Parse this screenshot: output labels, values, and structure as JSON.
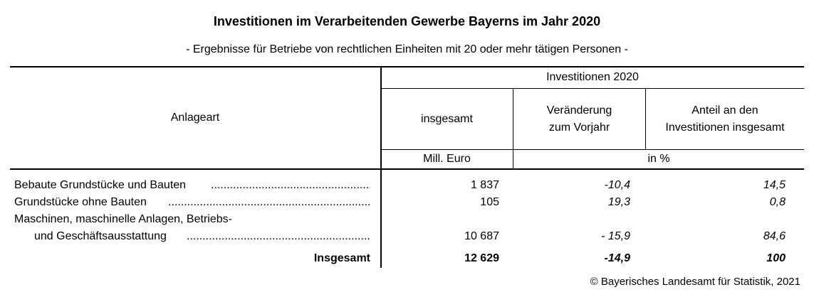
{
  "title": "Investitionen im Verarbeitenden Gewerbe Bayerns im Jahr 2020",
  "subtitle": "- Ergebnisse für Betriebe von rechtlichen Einheiten mit 20 oder mehr tätigen Personen -",
  "header": {
    "row_label": "Anlageart",
    "group": "Investitionen 2020",
    "col1": "insgesamt",
    "col2_line1": "Veränderung",
    "col2_line2": "zum Vorjahr",
    "col3_line1": "Anteil an den",
    "col3_line2": "Investitionen insgesamt",
    "unit1": "Mill. Euro",
    "unit2": "in %"
  },
  "rows": [
    {
      "label": "Bebaute Grundstücke und Bauten",
      "insgesamt": "1 837",
      "veraenderung": "-10,4",
      "anteil": "14,5"
    },
    {
      "label": "Grundstücke ohne Bauten",
      "insgesamt": "105",
      "veraenderung": "19,3",
      "anteil": "0,8"
    },
    {
      "label_line1": "Maschinen, maschinelle Anlagen, Betriebs-",
      "label": "und Geschäftsausstattung",
      "insgesamt": "10 687",
      "veraenderung": "- 15,9",
      "anteil": "84,6"
    }
  ],
  "total": {
    "label": "Insgesamt",
    "insgesamt": "12 629",
    "veraenderung": "-14,9",
    "anteil": "100"
  },
  "footer": "© Bayerisches Landesamt für Statistik, 2021"
}
